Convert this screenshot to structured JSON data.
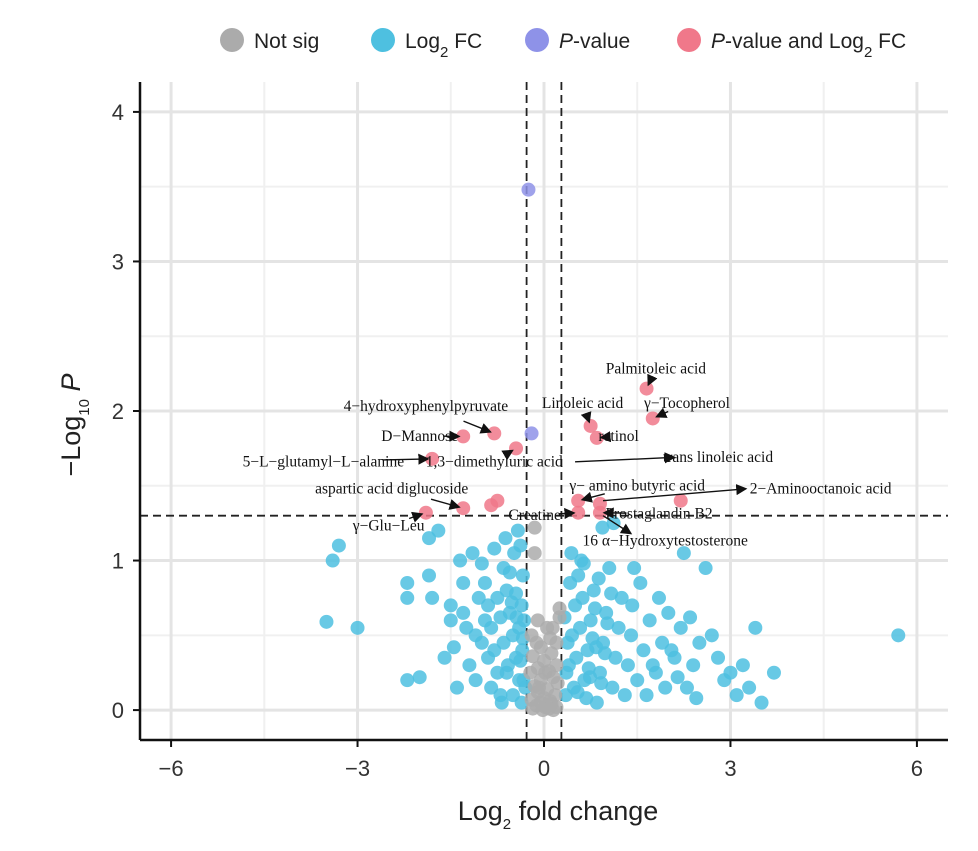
{
  "chart_data": {
    "type": "scatter",
    "title": "",
    "xlabel": {
      "main": "Log",
      "sub": "2",
      "rest": " fold change"
    },
    "ylabel": {
      "pre": "−Log",
      "sub": "10",
      "rest": " P"
    },
    "xlim": [
      -6.5,
      6.5
    ],
    "ylim": [
      -0.2,
      4.2
    ],
    "x_ticks": [
      -6,
      -3,
      0,
      3,
      6
    ],
    "x_tick_labels": [
      "−6",
      "−3",
      "0",
      "3",
      "6"
    ],
    "y_ticks": [
      0,
      1,
      2,
      3,
      4
    ],
    "y_tick_labels": [
      "0",
      "1",
      "2",
      "3",
      "4"
    ],
    "grid": true,
    "thresholds": {
      "x": [
        -0.28,
        0.28
      ],
      "y": 1.3
    },
    "legend_position": "top",
    "legend": [
      {
        "key": "ns",
        "parts": [
          [
            "Not sig",
            "n"
          ]
        ]
      },
      {
        "key": "fc",
        "parts": [
          [
            "Log",
            "n"
          ],
          [
            "2",
            "sub"
          ],
          [
            " FC",
            "n"
          ]
        ]
      },
      {
        "key": "p",
        "parts": [
          [
            "P",
            "i"
          ],
          [
            "-value",
            "n"
          ]
        ]
      },
      {
        "key": "both",
        "parts": [
          [
            "P",
            "i"
          ],
          [
            "-value and Log",
            "n"
          ],
          [
            "2",
            "sub"
          ],
          [
            " FC",
            "n"
          ]
        ]
      }
    ],
    "colors": {
      "ns": "#ababab",
      "fc": "#4ec0e0",
      "p": "#8e92e8",
      "both": "#f0788a"
    },
    "series": [
      {
        "key": "both",
        "points": [
          [
            1.65,
            2.15
          ],
          [
            0.75,
            1.9
          ],
          [
            0.85,
            1.82
          ],
          [
            1.75,
            1.95
          ],
          [
            -1.3,
            1.83
          ],
          [
            -0.8,
            1.85
          ],
          [
            -0.45,
            1.75
          ],
          [
            -1.8,
            1.68
          ],
          [
            -1.9,
            1.32
          ],
          [
            -1.3,
            1.35
          ],
          [
            -0.75,
            1.4
          ],
          [
            -0.85,
            1.37
          ],
          [
            0.55,
            1.4
          ],
          [
            0.9,
            1.38
          ],
          [
            2.2,
            1.4
          ],
          [
            0.55,
            1.32
          ],
          [
            0.9,
            1.32
          ]
        ]
      },
      {
        "key": "p",
        "points": [
          [
            -0.25,
            3.48
          ],
          [
            -0.2,
            1.85
          ]
        ]
      },
      {
        "key": "ns",
        "points": [
          [
            -0.15,
            1.22
          ],
          [
            -0.15,
            1.05
          ],
          [
            0.25,
            0.68
          ],
          [
            0.25,
            0.62
          ],
          [
            -0.1,
            0.6
          ],
          [
            0.05,
            0.55
          ],
          [
            -0.2,
            0.5
          ],
          [
            0.1,
            0.48
          ],
          [
            0.2,
            0.45
          ],
          [
            -0.05,
            0.42
          ],
          [
            0.12,
            0.38
          ],
          [
            -0.18,
            0.36
          ],
          [
            0.0,
            0.33
          ],
          [
            0.2,
            0.3
          ],
          [
            -0.1,
            0.28
          ],
          [
            0.08,
            0.26
          ],
          [
            -0.22,
            0.25
          ],
          [
            0.15,
            0.22
          ],
          [
            -0.05,
            0.2
          ],
          [
            0.22,
            0.18
          ],
          [
            -0.15,
            0.16
          ],
          [
            0.05,
            0.14
          ],
          [
            -0.1,
            0.12
          ],
          [
            0.18,
            0.1
          ],
          [
            0.0,
            0.08
          ],
          [
            -0.2,
            0.07
          ],
          [
            0.1,
            0.06
          ],
          [
            -0.05,
            0.05
          ],
          [
            0.12,
            0.04
          ],
          [
            -0.12,
            0.03
          ],
          [
            0.02,
            0.02
          ],
          [
            0.2,
            0.02
          ],
          [
            -0.18,
            0.01
          ],
          [
            0.08,
            0.01
          ],
          [
            -0.02,
            0.0
          ],
          [
            0.15,
            0.0
          ],
          [
            -0.08,
            0.15
          ],
          [
            0.02,
            0.25
          ],
          [
            -0.12,
            0.45
          ],
          [
            0.14,
            0.55
          ]
        ]
      },
      {
        "key": "fc",
        "points": [
          [
            5.7,
            0.5
          ],
          [
            -3.5,
            0.59
          ],
          [
            -3.0,
            0.55
          ],
          [
            -3.3,
            1.1
          ],
          [
            -3.4,
            1.0
          ],
          [
            -2.2,
            0.2
          ],
          [
            -2.2,
            0.85
          ],
          [
            -2.2,
            0.75
          ],
          [
            -2.0,
            0.22
          ],
          [
            -1.85,
            0.9
          ],
          [
            -1.85,
            1.15
          ],
          [
            -1.8,
            0.75
          ],
          [
            -1.7,
            1.2
          ],
          [
            -1.5,
            0.7
          ],
          [
            -1.5,
            0.6
          ],
          [
            -1.35,
            1.0
          ],
          [
            -1.3,
            0.85
          ],
          [
            -1.15,
            1.05
          ],
          [
            -1.1,
            0.5
          ],
          [
            -1.0,
            0.98
          ],
          [
            -0.95,
            0.85
          ],
          [
            -0.9,
            0.7
          ],
          [
            -0.85,
            0.55
          ],
          [
            -0.8,
            0.4
          ],
          [
            -0.75,
            0.25
          ],
          [
            -0.7,
            0.1
          ],
          [
            -0.65,
            0.95
          ],
          [
            -0.6,
            0.8
          ],
          [
            -0.55,
            0.65
          ],
          [
            -0.5,
            0.5
          ],
          [
            -0.45,
            0.35
          ],
          [
            -0.4,
            0.2
          ],
          [
            -0.38,
            1.1
          ],
          [
            -0.36,
            0.05
          ],
          [
            -0.34,
            0.9
          ],
          [
            -0.32,
            0.6
          ],
          [
            -1.2,
            0.3
          ],
          [
            -1.4,
            0.15
          ],
          [
            -1.6,
            0.35
          ],
          [
            -1.0,
            0.45
          ],
          [
            -0.9,
            0.35
          ],
          [
            -0.7,
            0.62
          ],
          [
            -0.6,
            0.25
          ],
          [
            -0.55,
            0.92
          ],
          [
            -0.45,
            0.78
          ],
          [
            -0.4,
            0.55
          ],
          [
            -0.35,
            0.4
          ],
          [
            -0.33,
            0.2
          ],
          [
            -0.5,
            0.1
          ],
          [
            -0.65,
            0.45
          ],
          [
            -0.75,
            0.75
          ],
          [
            -0.85,
            0.15
          ],
          [
            -0.95,
            0.6
          ],
          [
            -1.05,
            0.75
          ],
          [
            -1.25,
            0.55
          ],
          [
            -1.45,
            0.42
          ],
          [
            -0.42,
            1.2
          ],
          [
            -0.48,
            1.05
          ],
          [
            -0.58,
            0.3
          ],
          [
            -0.68,
            0.05
          ],
          [
            -1.1,
            0.2
          ],
          [
            -1.3,
            0.65
          ],
          [
            -0.8,
            1.08
          ],
          [
            -0.62,
            1.15
          ],
          [
            -0.52,
            0.72
          ],
          [
            -0.44,
            0.62
          ],
          [
            -0.38,
            0.33
          ],
          [
            -0.36,
            0.7
          ],
          [
            -0.34,
            0.48
          ],
          [
            -0.3,
            0.15
          ],
          [
            0.35,
            0.1
          ],
          [
            0.4,
            0.3
          ],
          [
            0.45,
            0.5
          ],
          [
            0.5,
            0.7
          ],
          [
            0.55,
            0.9
          ],
          [
            0.6,
            1.0
          ],
          [
            0.65,
            0.2
          ],
          [
            0.7,
            0.4
          ],
          [
            0.75,
            0.6
          ],
          [
            0.8,
            0.8
          ],
          [
            0.85,
            0.05
          ],
          [
            0.9,
            0.25
          ],
          [
            0.95,
            0.45
          ],
          [
            1.0,
            0.65
          ],
          [
            1.05,
            0.95
          ],
          [
            1.1,
            0.15
          ],
          [
            1.15,
            0.35
          ],
          [
            1.2,
            0.55
          ],
          [
            1.25,
            0.75
          ],
          [
            1.3,
            0.1
          ],
          [
            1.35,
            0.3
          ],
          [
            1.4,
            0.5
          ],
          [
            1.45,
            0.95
          ],
          [
            1.5,
            0.2
          ],
          [
            1.6,
            0.4
          ],
          [
            1.7,
            0.6
          ],
          [
            1.8,
            0.25
          ],
          [
            1.9,
            0.45
          ],
          [
            2.0,
            0.65
          ],
          [
            2.1,
            0.35
          ],
          [
            2.2,
            0.55
          ],
          [
            2.3,
            0.15
          ],
          [
            2.4,
            0.3
          ],
          [
            2.5,
            0.45
          ],
          [
            2.6,
            0.95
          ],
          [
            2.7,
            0.5
          ],
          [
            2.8,
            0.35
          ],
          [
            2.9,
            0.2
          ],
          [
            3.0,
            0.25
          ],
          [
            3.1,
            0.1
          ],
          [
            3.2,
            0.3
          ],
          [
            3.3,
            0.15
          ],
          [
            3.4,
            0.55
          ],
          [
            3.5,
            0.05
          ],
          [
            3.7,
            0.25
          ],
          [
            0.38,
            0.45
          ],
          [
            0.42,
            0.85
          ],
          [
            0.48,
            0.15
          ],
          [
            0.52,
            0.35
          ],
          [
            0.58,
            0.55
          ],
          [
            0.62,
            0.75
          ],
          [
            0.68,
            0.08
          ],
          [
            0.72,
            0.28
          ],
          [
            0.78,
            0.48
          ],
          [
            0.82,
            0.68
          ],
          [
            0.88,
            0.88
          ],
          [
            0.92,
            0.18
          ],
          [
            0.98,
            0.38
          ],
          [
            1.02,
            0.58
          ],
          [
            1.08,
            0.78
          ],
          [
            0.33,
            0.62
          ],
          [
            0.36,
            0.25
          ],
          [
            0.44,
            1.05
          ],
          [
            0.54,
            0.12
          ],
          [
            0.64,
            0.98
          ],
          [
            0.74,
            0.22
          ],
          [
            0.84,
            0.42
          ],
          [
            0.94,
            1.22
          ],
          [
            1.12,
            1.25
          ],
          [
            1.42,
            0.7
          ],
          [
            1.55,
            0.85
          ],
          [
            1.65,
            0.1
          ],
          [
            1.75,
            0.3
          ],
          [
            1.85,
            0.75
          ],
          [
            1.95,
            0.15
          ],
          [
            2.05,
            0.4
          ],
          [
            2.15,
            0.22
          ],
          [
            2.25,
            1.05
          ],
          [
            2.35,
            0.62
          ],
          [
            2.45,
            0.08
          ]
        ]
      }
    ],
    "annotations": [
      {
        "label": "Palmitoleic acid",
        "x": 1.65,
        "y": 2.15,
        "tx": 1.8,
        "ty": 2.25,
        "anchor": "middle"
      },
      {
        "label": "Linoleic acid",
        "x": 0.75,
        "y": 1.9,
        "tx": 0.62,
        "ty": 2.02,
        "anchor": "middle"
      },
      {
        "label": "γ−Tocopherol",
        "x": 1.75,
        "y": 1.95,
        "tx": 2.3,
        "ty": 2.02,
        "anchor": "middle"
      },
      {
        "label": "retinol",
        "x": 0.85,
        "y": 1.82,
        "tx": 1.2,
        "ty": 1.8,
        "anchor": "middle"
      },
      {
        "label": "4−hydroxyphenylpyruvate",
        "x": -0.8,
        "y": 1.85,
        "tx": -1.9,
        "ty": 2.0,
        "anchor": "middle"
      },
      {
        "label": "D−Mannose",
        "x": -1.3,
        "y": 1.83,
        "tx": -2.0,
        "ty": 1.8,
        "anchor": "middle"
      },
      {
        "label": "5−L−glutamyl−L−alanine",
        "x": -1.8,
        "y": 1.68,
        "tx": -3.55,
        "ty": 1.63,
        "anchor": "middle"
      },
      {
        "label": "1,3−dimethyluric acid",
        "x": -0.45,
        "y": 1.75,
        "tx": -0.8,
        "ty": 1.63,
        "anchor": "middle"
      },
      {
        "label": "trans linoleic acid",
        "x": 0.0,
        "y": 1.65,
        "tx": 2.8,
        "ty": 1.66,
        "anchor": "middle",
        "arrow_to": [
          2.1,
          1.69
        ],
        "arrow_from": [
          0.5,
          1.66
        ]
      },
      {
        "label": "γ− amino butyric acid",
        "x": 0.55,
        "y": 1.4,
        "tx": 1.5,
        "ty": 1.47,
        "anchor": "middle"
      },
      {
        "label": "2−Aminooctanoic acid",
        "x": 0.9,
        "y": 1.38,
        "tx": 4.45,
        "ty": 1.45,
        "anchor": "middle",
        "arrow_to": [
          3.25,
          1.48
        ],
        "arrow_from": [
          0.95,
          1.4
        ]
      },
      {
        "label": "aspartic acid diglucoside",
        "x": -1.3,
        "y": 1.35,
        "tx": -2.45,
        "ty": 1.45,
        "anchor": "middle"
      },
      {
        "label": "Prostaglandin B2",
        "x": 0.9,
        "y": 1.32,
        "tx": 1.85,
        "ty": 1.28,
        "anchor": "middle"
      },
      {
        "label": "Creatine",
        "x": 0.55,
        "y": 1.32,
        "tx": -0.15,
        "ty": 1.27,
        "anchor": "middle"
      },
      {
        "label": "γ−Glu−Leu",
        "x": -1.9,
        "y": 1.32,
        "tx": -2.5,
        "ty": 1.2,
        "anchor": "middle"
      },
      {
        "label": "16 α−Hydroxytestosterone",
        "x": 0.9,
        "y": 1.32,
        "tx": 1.95,
        "ty": 1.1,
        "anchor": "middle",
        "arrow_to": [
          1.4,
          1.18
        ],
        "arrow_from": [
          0.95,
          1.3
        ]
      }
    ]
  }
}
